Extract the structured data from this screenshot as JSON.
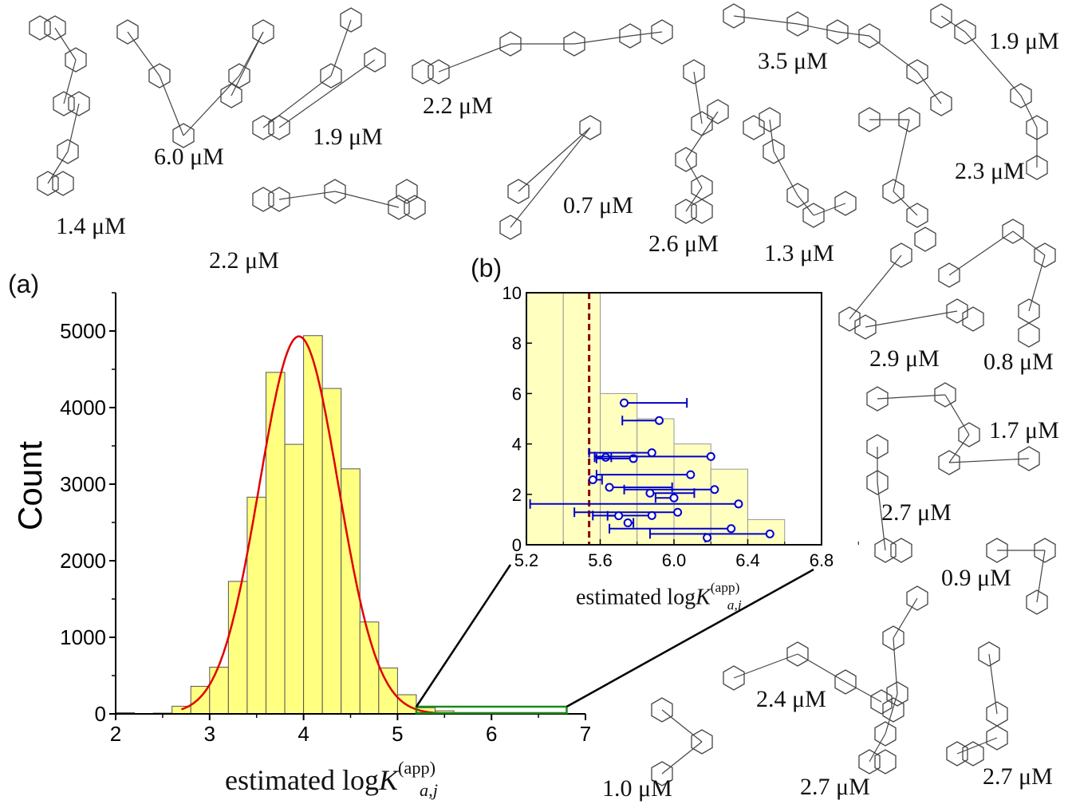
{
  "panel_labels": {
    "a": "(a)",
    "b": "(b)"
  },
  "chart_data": [
    {
      "type": "bar",
      "panel": "(a)",
      "ylabel": "Count",
      "xlabel": {
        "prefix": "estimated log",
        "var": "K",
        "sub": "a,j",
        "sup": "(app)"
      },
      "bin_width": 0.2,
      "bin_starts": [
        2.0,
        2.2,
        2.4,
        2.6,
        2.8,
        3.0,
        3.2,
        3.4,
        3.6,
        3.8,
        4.0,
        4.2,
        4.4,
        4.6,
        4.8,
        5.0,
        5.2,
        5.4,
        5.6,
        5.8,
        6.0,
        6.2,
        6.4
      ],
      "values": [
        15,
        5,
        10,
        100,
        360,
        610,
        1730,
        2830,
        4460,
        3520,
        4940,
        4250,
        3200,
        1200,
        600,
        250,
        80,
        40,
        6,
        5,
        4,
        3,
        1
      ],
      "fit": {
        "type": "gaussian",
        "mean": 3.95,
        "sd": 0.42,
        "peak": 4930,
        "range": [
          2.7,
          5.65
        ],
        "color": "#e00000"
      },
      "xlim": [
        2,
        7
      ],
      "ylim": [
        0,
        5500
      ],
      "xticks": [
        "2",
        "3",
        "4",
        "5",
        "6",
        "7"
      ],
      "yticks": [
        "0",
        "1000",
        "2000",
        "3000",
        "4000",
        "5000"
      ],
      "zoom_box": {
        "x": [
          5.2,
          6.8
        ],
        "color": "#1a8a1a"
      },
      "bar_color": "#ffff80"
    },
    {
      "type": "bar+errorbar",
      "panel": "(b)",
      "xlabel": {
        "prefix": "estimated log",
        "var": "K",
        "sub": "a,j",
        "sup": "(app)"
      },
      "bin_starts": [
        5.2,
        5.4,
        5.6,
        5.8,
        6.0,
        6.2,
        6.4
      ],
      "values": [
        80,
        40,
        6,
        5,
        4,
        3,
        1
      ],
      "xlim": [
        5.2,
        6.8
      ],
      "ylim": [
        0,
        10
      ],
      "xticks": [
        "5.2",
        "5.6",
        "6.0",
        "6.4",
        "6.8"
      ],
      "yticks": [
        "0",
        "2",
        "4",
        "6",
        "8",
        "10"
      ],
      "threshold_line": {
        "x": 5.54,
        "color": "#8b0000",
        "style": "dashed"
      },
      "points_color": "#0000cc",
      "points": [
        {
          "x": 5.73,
          "y": 5.63,
          "lo": 5.73,
          "hi": 6.07
        },
        {
          "x": 5.92,
          "y": 4.93,
          "lo": 5.72,
          "hi": 5.92
        },
        {
          "x": 5.88,
          "y": 3.65,
          "lo": 5.54,
          "hi": 5.88
        },
        {
          "x": 5.63,
          "y": 3.47,
          "lo": 5.57,
          "hi": 5.66
        },
        {
          "x": 5.78,
          "y": 3.42,
          "lo": 5.58,
          "hi": 5.78
        },
        {
          "x": 6.2,
          "y": 3.5,
          "lo": 5.57,
          "hi": 6.2
        },
        {
          "x": 6.09,
          "y": 2.78,
          "lo": 5.58,
          "hi": 6.09
        },
        {
          "x": 5.56,
          "y": 2.58,
          "lo": 5.56,
          "hi": 5.61
        },
        {
          "x": 5.65,
          "y": 2.28,
          "lo": 5.65,
          "hi": 5.99
        },
        {
          "x": 6.22,
          "y": 2.19,
          "lo": 5.73,
          "hi": 6.22
        },
        {
          "x": 5.87,
          "y": 2.05,
          "lo": 5.87,
          "hi": 6.11
        },
        {
          "x": 6.0,
          "y": 1.86,
          "lo": 5.9,
          "hi": 6.0
        },
        {
          "x": 6.35,
          "y": 1.62,
          "lo": 5.22,
          "hi": 6.35
        },
        {
          "x": 6.02,
          "y": 1.29,
          "lo": 5.46,
          "hi": 6.02
        },
        {
          "x": 5.88,
          "y": 1.16,
          "lo": 5.56,
          "hi": 5.88
        },
        {
          "x": 5.7,
          "y": 1.15,
          "lo": 5.64,
          "hi": 5.7
        },
        {
          "x": 5.75,
          "y": 0.87,
          "lo": 5.75,
          "hi": 5.78
        },
        {
          "x": 6.31,
          "y": 0.64,
          "lo": 5.65,
          "hi": 6.31
        },
        {
          "x": 6.52,
          "y": 0.43,
          "lo": 5.87,
          "hi": 6.52
        },
        {
          "x": 6.18,
          "y": 0.28,
          "lo": 6.17,
          "hi": 6.18
        }
      ]
    }
  ],
  "compounds": [
    "1.4 μM",
    "6.0 μM",
    "1.9 μM",
    "2.2 μM",
    "2.2 μM",
    "0.7 μM",
    "2.6 μM",
    "1.3 μM",
    "3.5 μM",
    "1.9 μM",
    "2.3 μM",
    "2.9 μM",
    "0.8 μM",
    "1.7 μM",
    "2.7 μM",
    "0.9 μM",
    "2.4 μM",
    "1.0 μM",
    "2.7 μM",
    "2.7 μM"
  ]
}
